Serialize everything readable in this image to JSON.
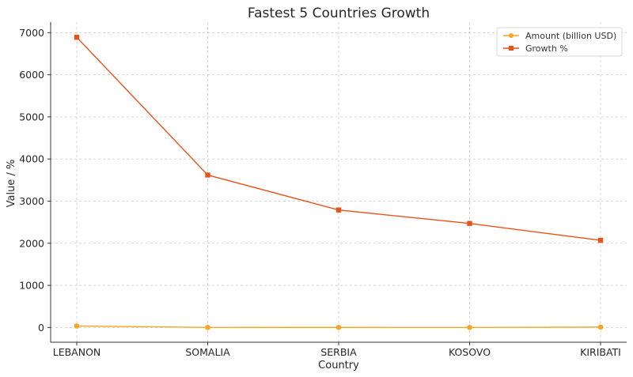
{
  "chart_data": {
    "type": "line",
    "title": "Fastest 5 Countries Growth",
    "xlabel": "Country",
    "ylabel": "Value / %",
    "categories": [
      "LEBANON",
      "SOMALIA",
      "SERBIA",
      "KOSOVO",
      "KIRIBATI"
    ],
    "ylim": [
      -350,
      7250
    ],
    "yticks": [
      0,
      1000,
      2000,
      3000,
      4000,
      5000,
      6000,
      7000
    ],
    "grid": true,
    "legend": "top-right",
    "series": [
      {
        "name": "Amount (billion USD)",
        "color": "#f5a623",
        "marker": "circle",
        "values": [
          35,
          1,
          2,
          1,
          9
        ]
      },
      {
        "name": "Growth %",
        "color": "#e8531b",
        "marker": "square",
        "values": [
          6890,
          3620,
          2790,
          2470,
          2070
        ]
      }
    ]
  }
}
